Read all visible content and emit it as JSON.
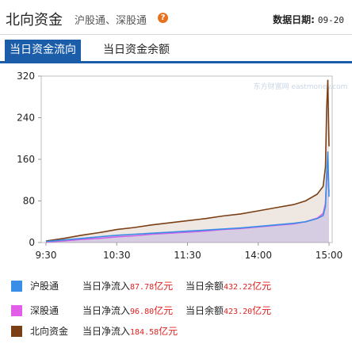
{
  "header": {
    "title": "北向资金",
    "subtitle": "沪股通、深股通",
    "help_icon": "question-mark-icon",
    "date_label": "数据日期:",
    "date_value": "09-20"
  },
  "tabs": [
    {
      "label": "当日资金流向",
      "active": true
    },
    {
      "label": "当日资金余额",
      "active": false
    }
  ],
  "watermark": "东方财富网 eastmoney.com",
  "colors": {
    "accent": "#1b5da8",
    "sh": "#3a8ee6",
    "sz": "#e25de8",
    "north": "#7a3f14",
    "positive": "#e02020"
  },
  "legend": [
    {
      "name": "沪股通",
      "flow_label": "当日净流入",
      "flow_value": "87.78",
      "flow_unit": "亿元",
      "balance_label": "当日余额",
      "balance_value": "432.22",
      "balance_unit": "亿元"
    },
    {
      "name": "深股通",
      "flow_label": "当日净流入",
      "flow_value": "96.80",
      "flow_unit": "亿元",
      "balance_label": "当日余额",
      "balance_value": "423.20",
      "balance_unit": "亿元"
    },
    {
      "name": "北向资金",
      "flow_label": "当日净流入",
      "flow_value": "184.58",
      "flow_unit": "亿元"
    }
  ],
  "chart_data": {
    "type": "area",
    "x_labels": [
      "9:30",
      "10:30",
      "11:30",
      "14:00",
      "15:00"
    ],
    "x": [
      "9:30",
      "9:45",
      "10:00",
      "10:15",
      "10:30",
      "10:45",
      "11:00",
      "11:15",
      "11:30",
      "13:15",
      "13:30",
      "13:45",
      "14:00",
      "14:15",
      "14:30",
      "14:40",
      "14:50",
      "14:55",
      "14:57",
      "14:58",
      "14:59",
      "15:00"
    ],
    "ylim": [
      0,
      320
    ],
    "yticks": [
      0,
      80,
      160,
      240,
      320
    ],
    "grid": false,
    "series": [
      {
        "name": "沪股通",
        "color": "#3a8ee6",
        "values": [
          2,
          5,
          8,
          11,
          14,
          16,
          18,
          20,
          22,
          24,
          26,
          28,
          31,
          34,
          37,
          40,
          46,
          52,
          70,
          130,
          175,
          88
        ]
      },
      {
        "name": "深股通",
        "color": "#e25de8",
        "values": [
          1,
          3,
          6,
          8,
          11,
          13,
          16,
          18,
          20,
          22,
          25,
          27,
          30,
          33,
          36,
          40,
          47,
          56,
          75,
          125,
          138,
          97
        ]
      },
      {
        "name": "北向资金",
        "color": "#7a3f14",
        "values": [
          3,
          8,
          14,
          19,
          25,
          29,
          34,
          38,
          42,
          46,
          51,
          55,
          61,
          67,
          73,
          80,
          93,
          108,
          145,
          255,
          313,
          185
        ]
      }
    ]
  }
}
